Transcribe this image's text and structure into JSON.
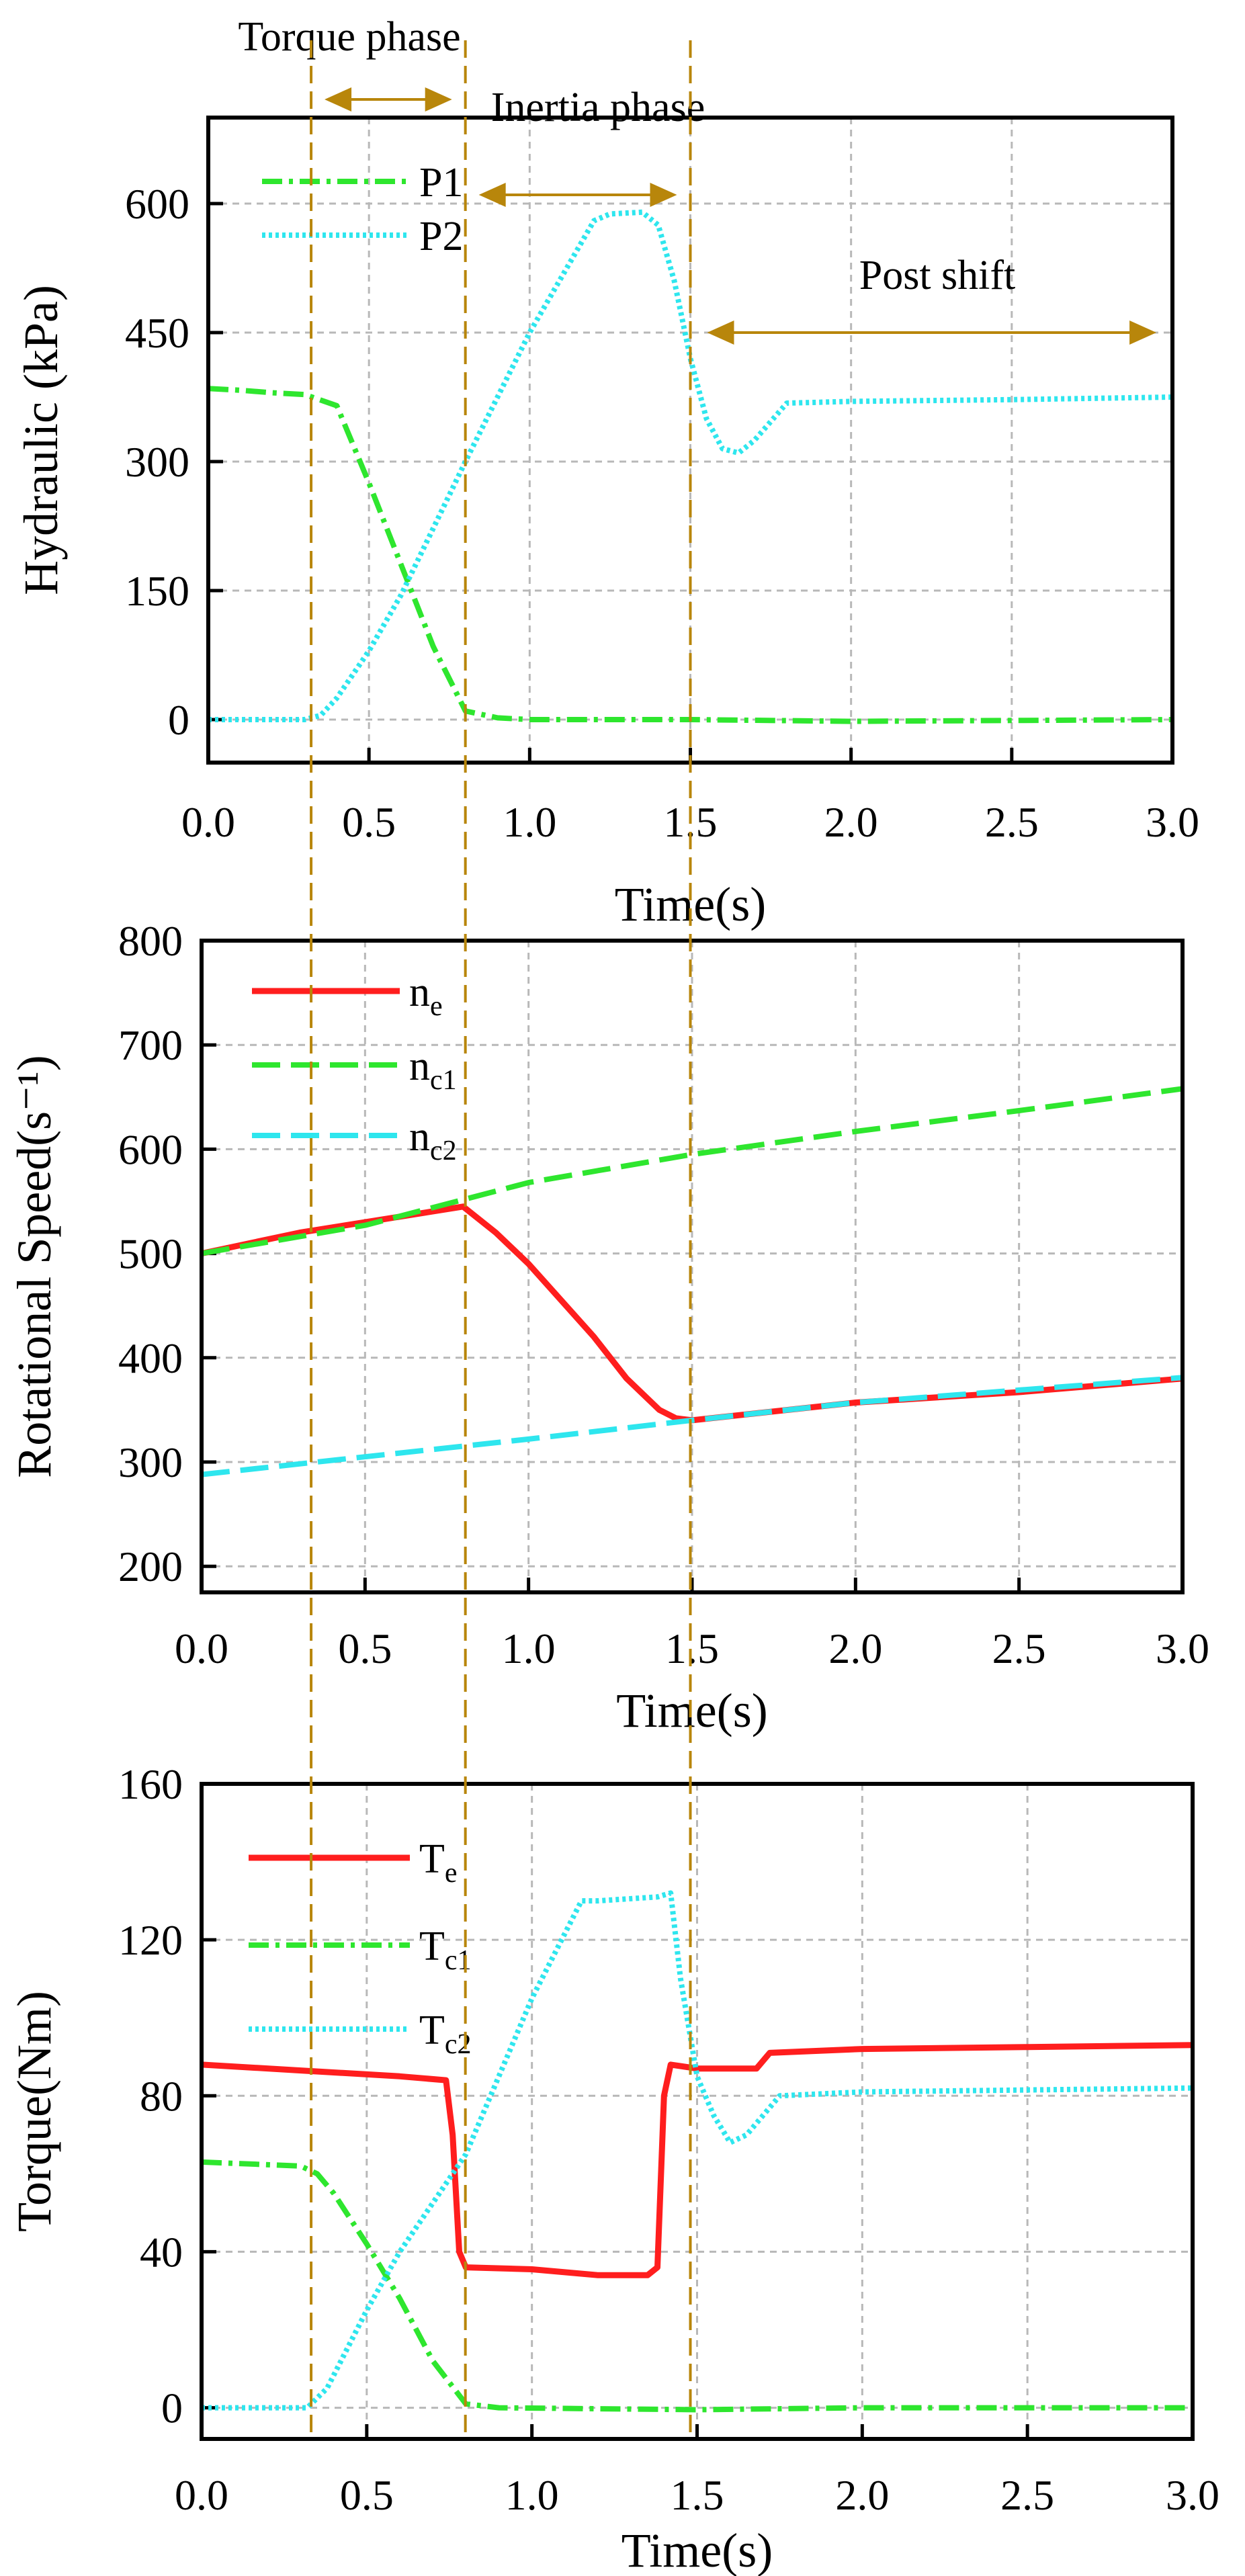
{
  "colors": {
    "red": "#ff1e1e",
    "green": "#2ee62e",
    "cyan": "#2ee6ee",
    "phase": "#b8860b"
  },
  "annotations": {
    "torque_phase": "Torque phase",
    "inertia_phase": "Inertia phase",
    "post_shift": "Post shift",
    "phase_boundaries_s": [
      0.32,
      0.8,
      1.5
    ]
  },
  "chart_data": [
    {
      "type": "line",
      "title": "",
      "xlabel": "Time(s)",
      "ylabel": "Hydraulic (kPa)",
      "xlim": [
        0,
        3
      ],
      "ylim": [
        -50,
        700
      ],
      "xticks": [
        "0.0",
        "0.5",
        "1.0",
        "1.5",
        "2.0",
        "2.5",
        "3.0"
      ],
      "yticks": [
        "0",
        "150",
        "300",
        "450",
        "600"
      ],
      "grid": true,
      "legend_position": "top-left",
      "series": [
        {
          "name": "P1",
          "style": "dashdot",
          "color": "#2ee62e",
          "x": [
            0,
            0.1,
            0.2,
            0.3,
            0.4,
            0.5,
            0.6,
            0.7,
            0.8,
            0.9,
            1.0,
            1.5,
            2.0,
            2.5,
            3.0
          ],
          "y": [
            385,
            383,
            380,
            378,
            365,
            275,
            180,
            85,
            10,
            2,
            0,
            0,
            -2,
            -1,
            0
          ]
        },
        {
          "name": "P2",
          "style": "dotted",
          "color": "#2ee6ee",
          "x": [
            0,
            0.3,
            0.35,
            0.4,
            0.5,
            0.6,
            0.8,
            1.0,
            1.2,
            1.25,
            1.35,
            1.4,
            1.45,
            1.5,
            1.55,
            1.6,
            1.65,
            1.7,
            1.8,
            2.0,
            2.5,
            3.0
          ],
          "y": [
            0,
            0,
            5,
            25,
            80,
            145,
            300,
            450,
            580,
            588,
            590,
            575,
            510,
            420,
            350,
            315,
            310,
            325,
            368,
            370,
            372,
            375
          ]
        }
      ]
    },
    {
      "type": "line",
      "title": "",
      "xlabel": "Time(s)",
      "ylabel": "Rotational Speed(s⁻¹)",
      "xlim": [
        0,
        3
      ],
      "ylim": [
        175,
        800
      ],
      "xticks": [
        "0.0",
        "0.5",
        "1.0",
        "1.5",
        "2.0",
        "2.5",
        "3.0"
      ],
      "yticks": [
        "200",
        "300",
        "400",
        "500",
        "600",
        "700",
        "800"
      ],
      "grid": true,
      "legend_position": "top-left",
      "series": [
        {
          "name": "ne",
          "name_main": "n",
          "name_sub": "e",
          "style": "solid",
          "color": "#ff1e1e",
          "x": [
            0,
            0.3,
            0.6,
            0.8,
            0.9,
            1.0,
            1.1,
            1.2,
            1.3,
            1.4,
            1.45,
            1.5,
            2.0,
            2.5,
            3.0
          ],
          "y": [
            500,
            520,
            535,
            545,
            520,
            490,
            455,
            420,
            380,
            350,
            342,
            340,
            357,
            367,
            380
          ]
        },
        {
          "name": "nc1",
          "name_main": "n",
          "name_sub": "c1",
          "style": "dashed",
          "color": "#2ee62e",
          "x": [
            0,
            0.5,
            1.0,
            1.5,
            2.0,
            2.5,
            3.0
          ],
          "y": [
            500,
            527,
            568,
            595,
            617,
            637,
            658
          ]
        },
        {
          "name": "nc2",
          "name_main": "n",
          "name_sub": "c2",
          "style": "dashed",
          "color": "#2ee6ee",
          "x": [
            0,
            0.5,
            1.0,
            1.5,
            2.0,
            2.5,
            3.0
          ],
          "y": [
            288,
            305,
            322,
            340,
            357,
            369,
            381
          ]
        }
      ]
    },
    {
      "type": "line",
      "title": "",
      "xlabel": "Time(s)",
      "ylabel": "Torque(Nm)",
      "xlim": [
        0,
        3
      ],
      "ylim": [
        -8,
        160
      ],
      "xticks": [
        "0.0",
        "0.5",
        "1.0",
        "1.5",
        "2.0",
        "2.5",
        "3.0"
      ],
      "yticks": [
        "0",
        "40",
        "80",
        "120",
        "160"
      ],
      "grid": true,
      "legend_position": "top-left",
      "series": [
        {
          "name": "Te",
          "name_main": "T",
          "name_sub": "e",
          "style": "solid",
          "color": "#ff1e1e",
          "x": [
            0,
            0.3,
            0.6,
            0.74,
            0.76,
            0.78,
            0.8,
            1.0,
            1.2,
            1.35,
            1.38,
            1.4,
            1.42,
            1.5,
            1.68,
            1.72,
            2.0,
            2.5,
            3.0
          ],
          "y": [
            88,
            86.5,
            85,
            84,
            70,
            40,
            36,
            35.5,
            34,
            34,
            36,
            80,
            88,
            87,
            87,
            91,
            92,
            92.5,
            93
          ]
        },
        {
          "name": "Tc1",
          "name_main": "T",
          "name_sub": "c1",
          "style": "dashdot",
          "color": "#2ee62e",
          "x": [
            0,
            0.3,
            0.35,
            0.4,
            0.5,
            0.6,
            0.7,
            0.8,
            0.9,
            1.5,
            2.0,
            2.5,
            3.0
          ],
          "y": [
            63,
            62,
            60,
            55,
            42,
            28,
            12,
            1,
            0,
            -0.5,
            0,
            0,
            0
          ]
        },
        {
          "name": "Tc2",
          "name_main": "T",
          "name_sub": "c2",
          "style": "dotted",
          "color": "#2ee6ee",
          "x": [
            0,
            0.32,
            0.38,
            0.5,
            0.6,
            0.8,
            1.0,
            1.15,
            1.2,
            1.38,
            1.42,
            1.45,
            1.5,
            1.55,
            1.6,
            1.65,
            1.75,
            2.0,
            3.0
          ],
          "y": [
            0,
            0,
            5,
            25,
            40,
            65,
            105,
            130,
            130,
            131,
            132,
            110,
            85,
            75,
            68,
            70,
            80,
            81,
            82
          ]
        }
      ]
    }
  ]
}
